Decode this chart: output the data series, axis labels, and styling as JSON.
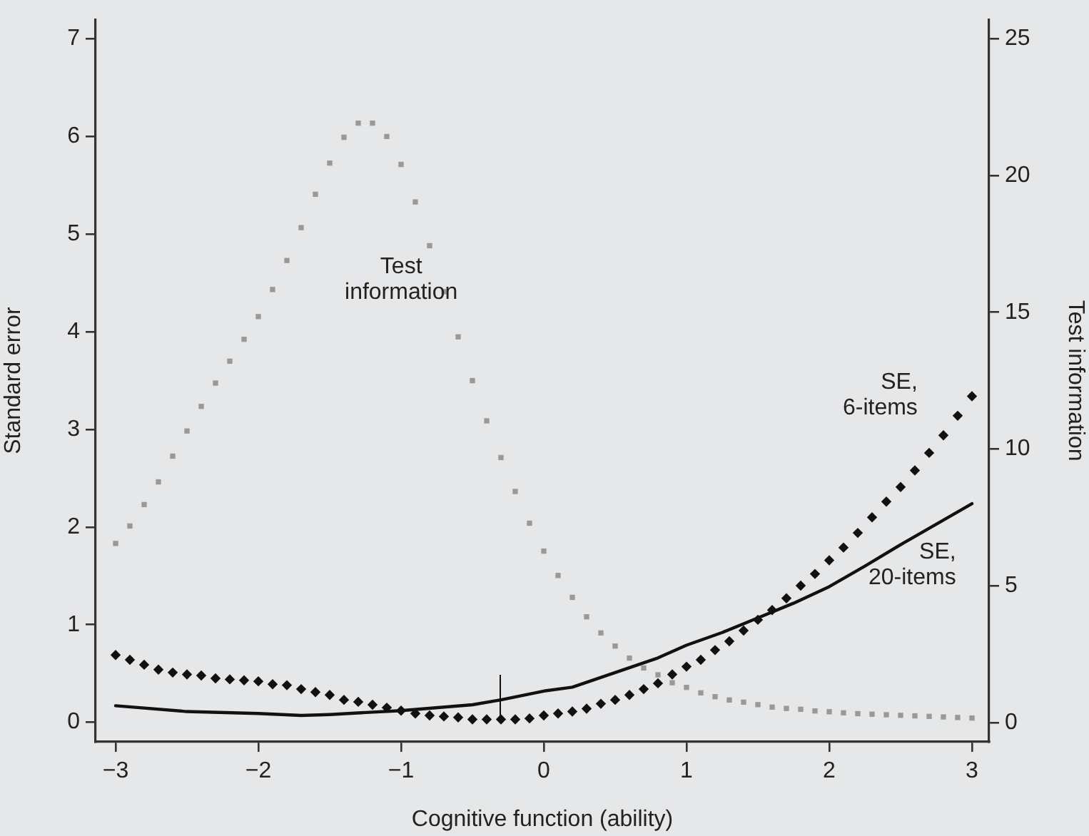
{
  "chart_data": {
    "type": "scatter",
    "xlabel": "Cognitive function (ability)",
    "ylabel": "Standard error",
    "y2label": "Test information",
    "x": [
      -3,
      -2.9,
      -2.8,
      -2.7,
      -2.6,
      -2.5,
      -2.4,
      -2.3,
      -2.2,
      -2.1,
      -2,
      -1.9,
      -1.8,
      -1.7,
      -1.6,
      -1.5,
      -1.4,
      -1.3,
      -1.2,
      -1.1,
      -1,
      -0.9,
      -0.8,
      -0.7,
      -0.6,
      -0.5,
      -0.4,
      -0.3,
      -0.2,
      -0.1,
      0,
      0.1,
      0.2,
      0.3,
      0.4,
      0.5,
      0.6,
      0.7,
      0.8,
      0.9,
      1,
      1.1,
      1.2,
      1.3,
      1.4,
      1.5,
      1.6,
      1.7,
      1.8,
      1.9,
      2,
      2.1,
      2.2,
      2.3,
      2.4,
      2.5,
      2.6,
      2.7,
      2.8,
      2.9,
      3
    ],
    "xlim": [
      -3.14,
      3.12
    ],
    "xticks": [
      {
        "value": -3,
        "label": "−3"
      },
      {
        "value": -2,
        "label": "−2"
      },
      {
        "value": -1,
        "label": "−1"
      },
      0,
      1,
      2,
      3
    ],
    "ylim": [
      -0.2,
      7.2
    ],
    "yticks": [
      0,
      1,
      2,
      3,
      4,
      5,
      6,
      7
    ],
    "y2lim": [
      -0.7,
      25.7
    ],
    "y2ticks": [
      0,
      5,
      10,
      15,
      20,
      25
    ],
    "grid": false,
    "legend": false,
    "series": [
      {
        "name": "Test information",
        "marker": "square",
        "axis": "y2",
        "color": "#999999",
        "values": [
          6.55,
          7.19,
          7.97,
          8.8,
          9.74,
          10.66,
          11.56,
          12.41,
          13.21,
          14.01,
          14.84,
          15.83,
          16.89,
          18.09,
          19.31,
          20.45,
          21.39,
          21.91,
          21.91,
          21.42,
          20.4,
          19.03,
          17.43,
          15.75,
          14.1,
          12.5,
          11.03,
          9.69,
          8.45,
          7.29,
          6.27,
          5.38,
          4.58,
          3.87,
          3.28,
          2.8,
          2.36,
          2,
          1.75,
          1.46,
          1.29,
          1.09,
          0.95,
          0.83,
          0.75,
          0.66,
          0.57,
          0.52,
          0.49,
          0.43,
          0.4,
          0.36,
          0.33,
          0.31,
          0.29,
          0.27,
          0.25,
          0.23,
          0.21,
          0.19,
          0.17
        ]
      },
      {
        "name": "SE, 6-items",
        "marker": "diamond",
        "color": "#111111",
        "values": [
          0.69,
          0.64,
          0.59,
          0.54,
          0.51,
          0.49,
          0.48,
          0.45,
          0.44,
          0.43,
          0.42,
          0.39,
          0.38,
          0.34,
          0.31,
          0.28,
          0.23,
          0.21,
          0.18,
          0.15,
          0.12,
          0.09,
          0.07,
          0.06,
          0.05,
          0.03,
          0.03,
          0.03,
          0.03,
          0.04,
          0.07,
          0.09,
          0.11,
          0.14,
          0.19,
          0.23,
          0.28,
          0.34,
          0.4,
          0.49,
          0.57,
          0.64,
          0.74,
          0.83,
          0.94,
          1.05,
          1.15,
          1.27,
          1.4,
          1.52,
          1.66,
          1.79,
          1.94,
          2.1,
          2.26,
          2.41,
          2.58,
          2.76,
          2.94,
          3.14,
          3.34
        ]
      },
      {
        "name": "SE, 20-items",
        "type": "line",
        "marker": "none",
        "line_style": "solid",
        "color": "#111111",
        "x": [
          -3,
          -2.5,
          -2,
          -1.7,
          -1.5,
          -1,
          -0.5,
          -0.3,
          0,
          0.2,
          0.5,
          0.8,
          1,
          1.25,
          1.5,
          1.75,
          2,
          2.25,
          2.5,
          2.75,
          3
        ],
        "values": [
          0.17,
          0.11,
          0.09,
          0.07,
          0.08,
          0.12,
          0.18,
          0.23,
          0.32,
          0.36,
          0.51,
          0.66,
          0.79,
          0.92,
          1.07,
          1.22,
          1.39,
          1.6,
          1.82,
          2.03,
          2.24
        ]
      }
    ]
  }
}
